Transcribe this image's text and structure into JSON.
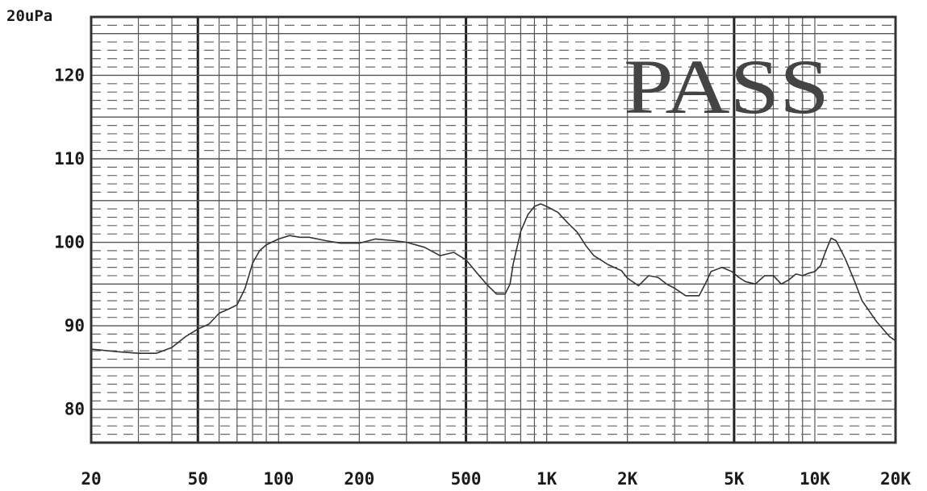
{
  "chart_data": {
    "type": "line",
    "y_unit_label": "20uPa",
    "x_scale": "log",
    "xlim": [
      20,
      20000
    ],
    "ylim": [
      76,
      127
    ],
    "x_tick_labels": [
      {
        "value": 20,
        "label": "20"
      },
      {
        "value": 50,
        "label": "50"
      },
      {
        "value": 100,
        "label": "100"
      },
      {
        "value": 200,
        "label": "200"
      },
      {
        "value": 500,
        "label": "500"
      },
      {
        "value": 1000,
        "label": "1K"
      },
      {
        "value": 2000,
        "label": "2K"
      },
      {
        "value": 5000,
        "label": "5K"
      },
      {
        "value": 10000,
        "label": "10K"
      },
      {
        "value": 20000,
        "label": "20K"
      }
    ],
    "y_tick_labels": [
      {
        "value": 80,
        "label": "80"
      },
      {
        "value": 90,
        "label": "90"
      },
      {
        "value": 100,
        "label": "100"
      },
      {
        "value": 110,
        "label": "110"
      },
      {
        "value": 120,
        "label": "120"
      }
    ],
    "grid": true,
    "stamp": "PASS",
    "series": [
      {
        "x": [
          20,
          25,
          30,
          35,
          40,
          45,
          50,
          55,
          60,
          65,
          70,
          75,
          80,
          85,
          90,
          100,
          110,
          120,
          130,
          150,
          170,
          200,
          230,
          270,
          300,
          350,
          400,
          450,
          500,
          550,
          600,
          650,
          700,
          730,
          750,
          800,
          850,
          900,
          950,
          1000,
          1100,
          1200,
          1300,
          1400,
          1500,
          1700,
          1900,
          2000,
          2200,
          2400,
          2600,
          2800,
          3000,
          3300,
          3500,
          3700,
          3900,
          4100,
          4500,
          4900,
          5200,
          5500,
          6000,
          6500,
          7000,
          7500,
          8000,
          8500,
          9000,
          9500,
          10000,
          10500,
          11000,
          11500,
          12000,
          13000,
          14000,
          15000,
          17000,
          19000,
          20000
        ],
        "y": [
          87.2,
          86.9,
          86.7,
          86.7,
          87.4,
          88.7,
          89.6,
          90.2,
          91.5,
          92.0,
          92.5,
          94.5,
          97.5,
          99.0,
          99.7,
          100.4,
          100.8,
          100.6,
          100.6,
          100.2,
          99.9,
          99.9,
          100.4,
          100.2,
          100.0,
          99.4,
          98.4,
          98.8,
          97.9,
          96.3,
          94.9,
          93.8,
          93.8,
          95.0,
          97.4,
          101.3,
          103.3,
          104.3,
          104.6,
          104.3,
          103.6,
          102.3,
          101.2,
          99.6,
          98.4,
          97.3,
          96.6,
          95.7,
          94.8,
          96.0,
          95.8,
          95.0,
          94.5,
          93.6,
          93.6,
          93.6,
          95.0,
          96.5,
          97.0,
          96.5,
          95.8,
          95.3,
          95.0,
          96.0,
          96.0,
          95.0,
          95.5,
          96.2,
          96.0,
          96.3,
          96.5,
          97.2,
          99.0,
          100.5,
          100.2,
          98.0,
          95.5,
          93.0,
          90.5,
          88.7,
          88.2
        ]
      }
    ]
  }
}
